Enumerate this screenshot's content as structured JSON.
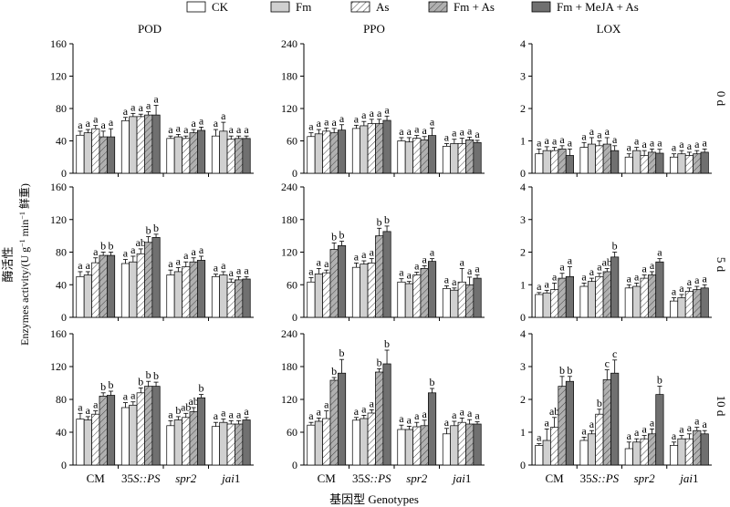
{
  "legend": [
    {
      "label": "CK",
      "fill": "white"
    },
    {
      "label": "Fm",
      "fill": "#d0d0d0"
    },
    {
      "label": "As",
      "fill": "hatch-light"
    },
    {
      "label": "Fm + As",
      "fill": "hatch-gray"
    },
    {
      "label": "Fm + MeJA + As",
      "fill": "#707070"
    }
  ],
  "colors": {
    "ck": "#ffffff",
    "fm": "#d0d0d0",
    "as_hatch": "#ffffff",
    "fmas_hatch": "#b0b0b0",
    "meja": "#707070",
    "axis": "#000000",
    "error_bar": "#000000"
  },
  "ylabel_cn": "酶活性",
  "ylabel_en": "Enzymes activity/(U g",
  "ylabel_mid": " min",
  "ylabel_end": " 鲜重)",
  "ylabel_exp": "−1",
  "xlabel": "基因型 Genotypes",
  "columns": [
    "POD",
    "PPO",
    "LOX"
  ],
  "rows": [
    "0 d",
    "5 d",
    "10 d"
  ],
  "genotypes": [
    {
      "pre": "CM",
      "it": "",
      "post": ""
    },
    {
      "pre": "35",
      "it": "S::PS",
      "post": ""
    },
    {
      "pre": "",
      "it": "spr2",
      "post": ""
    },
    {
      "pre": "",
      "it": "jai",
      "post": "1"
    }
  ],
  "chart_data": [
    {
      "type": "bar",
      "title": "POD",
      "row": "0 d",
      "ylim": [
        0,
        160
      ],
      "yticks": [
        "0",
        "40",
        "80",
        "120",
        "160"
      ],
      "series_order": [
        "CK",
        "Fm",
        "As",
        "Fm + As",
        "Fm + MeJA + As"
      ],
      "values": [
        [
          47,
          50,
          55,
          45,
          45
        ],
        [
          65,
          70,
          70,
          72,
          72
        ],
        [
          43,
          45,
          43,
          50,
          53
        ],
        [
          46,
          52,
          42,
          43,
          43
        ]
      ],
      "errors": [
        [
          5,
          4,
          4,
          7,
          10
        ],
        [
          4,
          4,
          3,
          4,
          12
        ],
        [
          3,
          3,
          3,
          4,
          4
        ],
        [
          8,
          11,
          4,
          3,
          3
        ]
      ],
      "letters": [
        [
          "a",
          "a",
          "a",
          "a",
          "a"
        ],
        [
          "a",
          "a",
          "a",
          "a",
          "a"
        ],
        [
          "a",
          "a",
          "a",
          "a",
          "a"
        ],
        [
          "a",
          "a",
          "a",
          "a",
          "a"
        ]
      ]
    },
    {
      "type": "bar",
      "title": "PPO",
      "row": "0 d",
      "ylim": [
        0,
        240
      ],
      "yticks": [
        "0",
        "60",
        "120",
        "180",
        "240"
      ],
      "series_order": [
        "CK",
        "Fm",
        "As",
        "Fm + As",
        "Fm + MeJA + As"
      ],
      "values": [
        [
          68,
          73,
          78,
          75,
          80
        ],
        [
          83,
          88,
          92,
          92,
          98
        ],
        [
          60,
          58,
          65,
          62,
          70
        ],
        [
          50,
          55,
          55,
          62,
          57
        ]
      ],
      "errors": [
        [
          7,
          8,
          6,
          8,
          10
        ],
        [
          6,
          8,
          8,
          8,
          8
        ],
        [
          6,
          8,
          5,
          6,
          14
        ],
        [
          5,
          8,
          10,
          5,
          4
        ]
      ],
      "letters": [
        [
          "a",
          "a",
          "a",
          "a",
          "a"
        ],
        [
          "a",
          "a",
          "a",
          "a",
          "a"
        ],
        [
          "a",
          "a",
          "a",
          "a",
          "a"
        ],
        [
          "a",
          "a",
          "a",
          "a",
          "a"
        ]
      ]
    },
    {
      "type": "bar",
      "title": "LOX",
      "row": "0 d",
      "ylim": [
        0,
        4
      ],
      "yticks": [
        "0",
        "1",
        "2",
        "3",
        "4"
      ],
      "series_order": [
        "CK",
        "Fm",
        "As",
        "Fm + As",
        "Fm + MeJA + As"
      ],
      "values": [
        [
          0.6,
          0.7,
          0.7,
          0.75,
          0.55
        ],
        [
          0.8,
          0.9,
          0.85,
          0.9,
          0.7
        ],
        [
          0.5,
          0.7,
          0.55,
          0.65,
          0.62
        ],
        [
          0.5,
          0.6,
          0.55,
          0.6,
          0.65
        ]
      ],
      "errors": [
        [
          0.15,
          0.12,
          0.1,
          0.1,
          0.2
        ],
        [
          0.15,
          0.2,
          0.15,
          0.2,
          0.15
        ],
        [
          0.1,
          0.1,
          0.15,
          0.1,
          0.12
        ],
        [
          0.1,
          0.1,
          0.1,
          0.1,
          0.1
        ]
      ],
      "letters": [
        [
          "a",
          "a",
          "a",
          "a",
          "a"
        ],
        [
          "a",
          "a",
          "a",
          "a",
          "a"
        ],
        [
          "a",
          "a",
          "a",
          "a",
          "a"
        ],
        [
          "a",
          "a",
          "a",
          "a",
          "a"
        ]
      ]
    },
    {
      "type": "bar",
      "title": "POD",
      "row": "5 d",
      "ylim": [
        0,
        160
      ],
      "yticks": [
        "0",
        "40",
        "80",
        "120",
        "160"
      ],
      "series_order": [
        "CK",
        "Fm",
        "As",
        "Fm + As",
        "Fm + MeJA + As"
      ],
      "values": [
        [
          50,
          52,
          67,
          76,
          76
        ],
        [
          66,
          68,
          78,
          92,
          98
        ],
        [
          52,
          56,
          62,
          68,
          70
        ],
        [
          50,
          52,
          43,
          46,
          47
        ]
      ],
      "errors": [
        [
          6,
          4,
          6,
          4,
          4
        ],
        [
          5,
          7,
          6,
          7,
          4
        ],
        [
          6,
          5,
          6,
          5,
          5
        ],
        [
          3,
          4,
          4,
          4,
          3
        ]
      ],
      "letters": [
        [
          "a",
          "a",
          "a",
          "b",
          "b"
        ],
        [
          "a",
          "a",
          "ab",
          "b",
          "b"
        ],
        [
          "a",
          "a",
          "a",
          "a",
          "a"
        ],
        [
          "a",
          "a",
          "a",
          "a",
          "a"
        ]
      ]
    },
    {
      "type": "bar",
      "title": "PPO",
      "row": "5 d",
      "ylim": [
        0,
        240
      ],
      "yticks": [
        "0",
        "60",
        "120",
        "180",
        "240"
      ],
      "series_order": [
        "CK",
        "Fm",
        "As",
        "Fm + As",
        "Fm + MeJA + As"
      ],
      "values": [
        [
          65,
          80,
          82,
          125,
          132
        ],
        [
          92,
          98,
          100,
          150,
          158
        ],
        [
          65,
          62,
          78,
          90,
          103
        ],
        [
          53,
          50,
          65,
          60,
          72
        ]
      ],
      "errors": [
        [
          8,
          10,
          5,
          12,
          8
        ],
        [
          8,
          6,
          8,
          14,
          10
        ],
        [
          6,
          4,
          5,
          5,
          5
        ],
        [
          5,
          4,
          25,
          14,
          6
        ]
      ],
      "letters": [
        [
          "a",
          "a",
          "a",
          "b",
          "b"
        ],
        [
          "a",
          "a",
          "a",
          "b",
          "b"
        ],
        [
          "a",
          "a",
          "a",
          "a",
          "a"
        ],
        [
          "a",
          "a",
          "a",
          "a",
          "a"
        ]
      ]
    },
    {
      "type": "bar",
      "title": "LOX",
      "row": "5 d",
      "ylim": [
        0,
        4
      ],
      "yticks": [
        "0",
        "1",
        "2",
        "3",
        "4"
      ],
      "series_order": [
        "CK",
        "Fm",
        "As",
        "Fm + As",
        "Fm + MeJA + As"
      ],
      "values": [
        [
          0.7,
          0.75,
          0.85,
          1.2,
          1.25
        ],
        [
          0.95,
          1.1,
          1.25,
          1.4,
          1.85
        ],
        [
          0.9,
          0.95,
          1.2,
          1.3,
          1.7
        ],
        [
          0.5,
          0.6,
          0.8,
          0.85,
          0.9
        ]
      ],
      "errors": [
        [
          0.06,
          0.08,
          0.2,
          0.15,
          0.3
        ],
        [
          0.1,
          0.1,
          0.1,
          0.1,
          0.15
        ],
        [
          0.1,
          0.1,
          0.1,
          0.1,
          0.1
        ],
        [
          0.1,
          0.1,
          0.1,
          0.1,
          0.1
        ]
      ],
      "letters": [
        [
          "a",
          "a",
          "a",
          "a",
          "a"
        ],
        [
          "a",
          "a",
          "a",
          "ab",
          "b"
        ],
        [
          "a",
          "a",
          "a",
          "a",
          "a"
        ],
        [
          "a",
          "a",
          "a",
          "a",
          "a"
        ]
      ]
    },
    {
      "type": "bar",
      "title": "POD",
      "row": "10 d",
      "ylim": [
        0,
        160
      ],
      "yticks": [
        "0",
        "40",
        "80",
        "120",
        "160"
      ],
      "series_order": [
        "CK",
        "Fm",
        "As",
        "Fm + As",
        "Fm + MeJA + As"
      ],
      "values": [
        [
          56,
          55,
          62,
          84,
          85
        ],
        [
          70,
          73,
          88,
          96,
          96
        ],
        [
          48,
          55,
          58,
          65,
          82
        ],
        [
          47,
          52,
          50,
          50,
          55
        ]
      ],
      "errors": [
        [
          7,
          4,
          4,
          4,
          5
        ],
        [
          6,
          4,
          6,
          6,
          5
        ],
        [
          6,
          4,
          5,
          5,
          4
        ],
        [
          5,
          4,
          4,
          4,
          3
        ]
      ],
      "letters": [
        [
          "a",
          "a",
          "a",
          "b",
          "b"
        ],
        [
          "a",
          "a",
          "b",
          "b",
          "b"
        ],
        [
          "a",
          "b",
          "ab",
          "ab",
          "b"
        ],
        [
          "a",
          "a",
          "a",
          "a",
          "a"
        ]
      ]
    },
    {
      "type": "bar",
      "title": "PPO",
      "row": "10 d",
      "ylim": [
        0,
        240
      ],
      "yticks": [
        "0",
        "60",
        "120",
        "180",
        "240"
      ],
      "series_order": [
        "CK",
        "Fm",
        "As",
        "Fm + As",
        "Fm + MeJA + As"
      ],
      "values": [
        [
          73,
          80,
          85,
          155,
          168
        ],
        [
          82,
          85,
          95,
          170,
          185
        ],
        [
          65,
          65,
          70,
          72,
          132
        ],
        [
          57,
          72,
          78,
          75,
          75
        ]
      ],
      "errors": [
        [
          5,
          6,
          14,
          5,
          25
        ],
        [
          5,
          6,
          6,
          6,
          25
        ],
        [
          8,
          6,
          8,
          10,
          8
        ],
        [
          10,
          8,
          8,
          8,
          4
        ]
      ],
      "letters": [
        [
          "a",
          "a",
          "a",
          "b",
          "b"
        ],
        [
          "a",
          "a",
          "a",
          "b",
          "b"
        ],
        [
          "a",
          "a",
          "a",
          "a",
          "b"
        ],
        [
          "a",
          "a",
          "a",
          "a",
          "a"
        ]
      ]
    },
    {
      "type": "bar",
      "title": "LOX",
      "row": "10 d",
      "ylim": [
        0,
        4
      ],
      "yticks": [
        "0",
        "1",
        "2",
        "3",
        "4"
      ],
      "series_order": [
        "CK",
        "Fm",
        "As",
        "Fm + As",
        "Fm + MeJA + As"
      ],
      "values": [
        [
          0.6,
          0.75,
          1.15,
          2.4,
          2.55
        ],
        [
          0.75,
          0.95,
          1.55,
          2.6,
          2.8
        ],
        [
          0.5,
          0.7,
          0.8,
          0.95,
          2.15
        ],
        [
          0.6,
          0.8,
          0.8,
          1.05,
          0.95
        ]
      ],
      "errors": [
        [
          0.05,
          0.35,
          0.3,
          0.3,
          0.15
        ],
        [
          0.1,
          0.1,
          0.15,
          0.3,
          0.4
        ],
        [
          0.2,
          0.1,
          0.1,
          0.15,
          0.25
        ],
        [
          0.1,
          0.1,
          0.15,
          0.1,
          0.1
        ]
      ],
      "letters": [
        [
          "a",
          "a",
          "ab",
          "b",
          "b"
        ],
        [
          "a",
          "a",
          "b",
          "c",
          "c"
        ],
        [
          "a",
          "a",
          "a",
          "a",
          "b"
        ],
        [
          "a",
          "a",
          "a",
          "a",
          "a"
        ]
      ]
    }
  ]
}
